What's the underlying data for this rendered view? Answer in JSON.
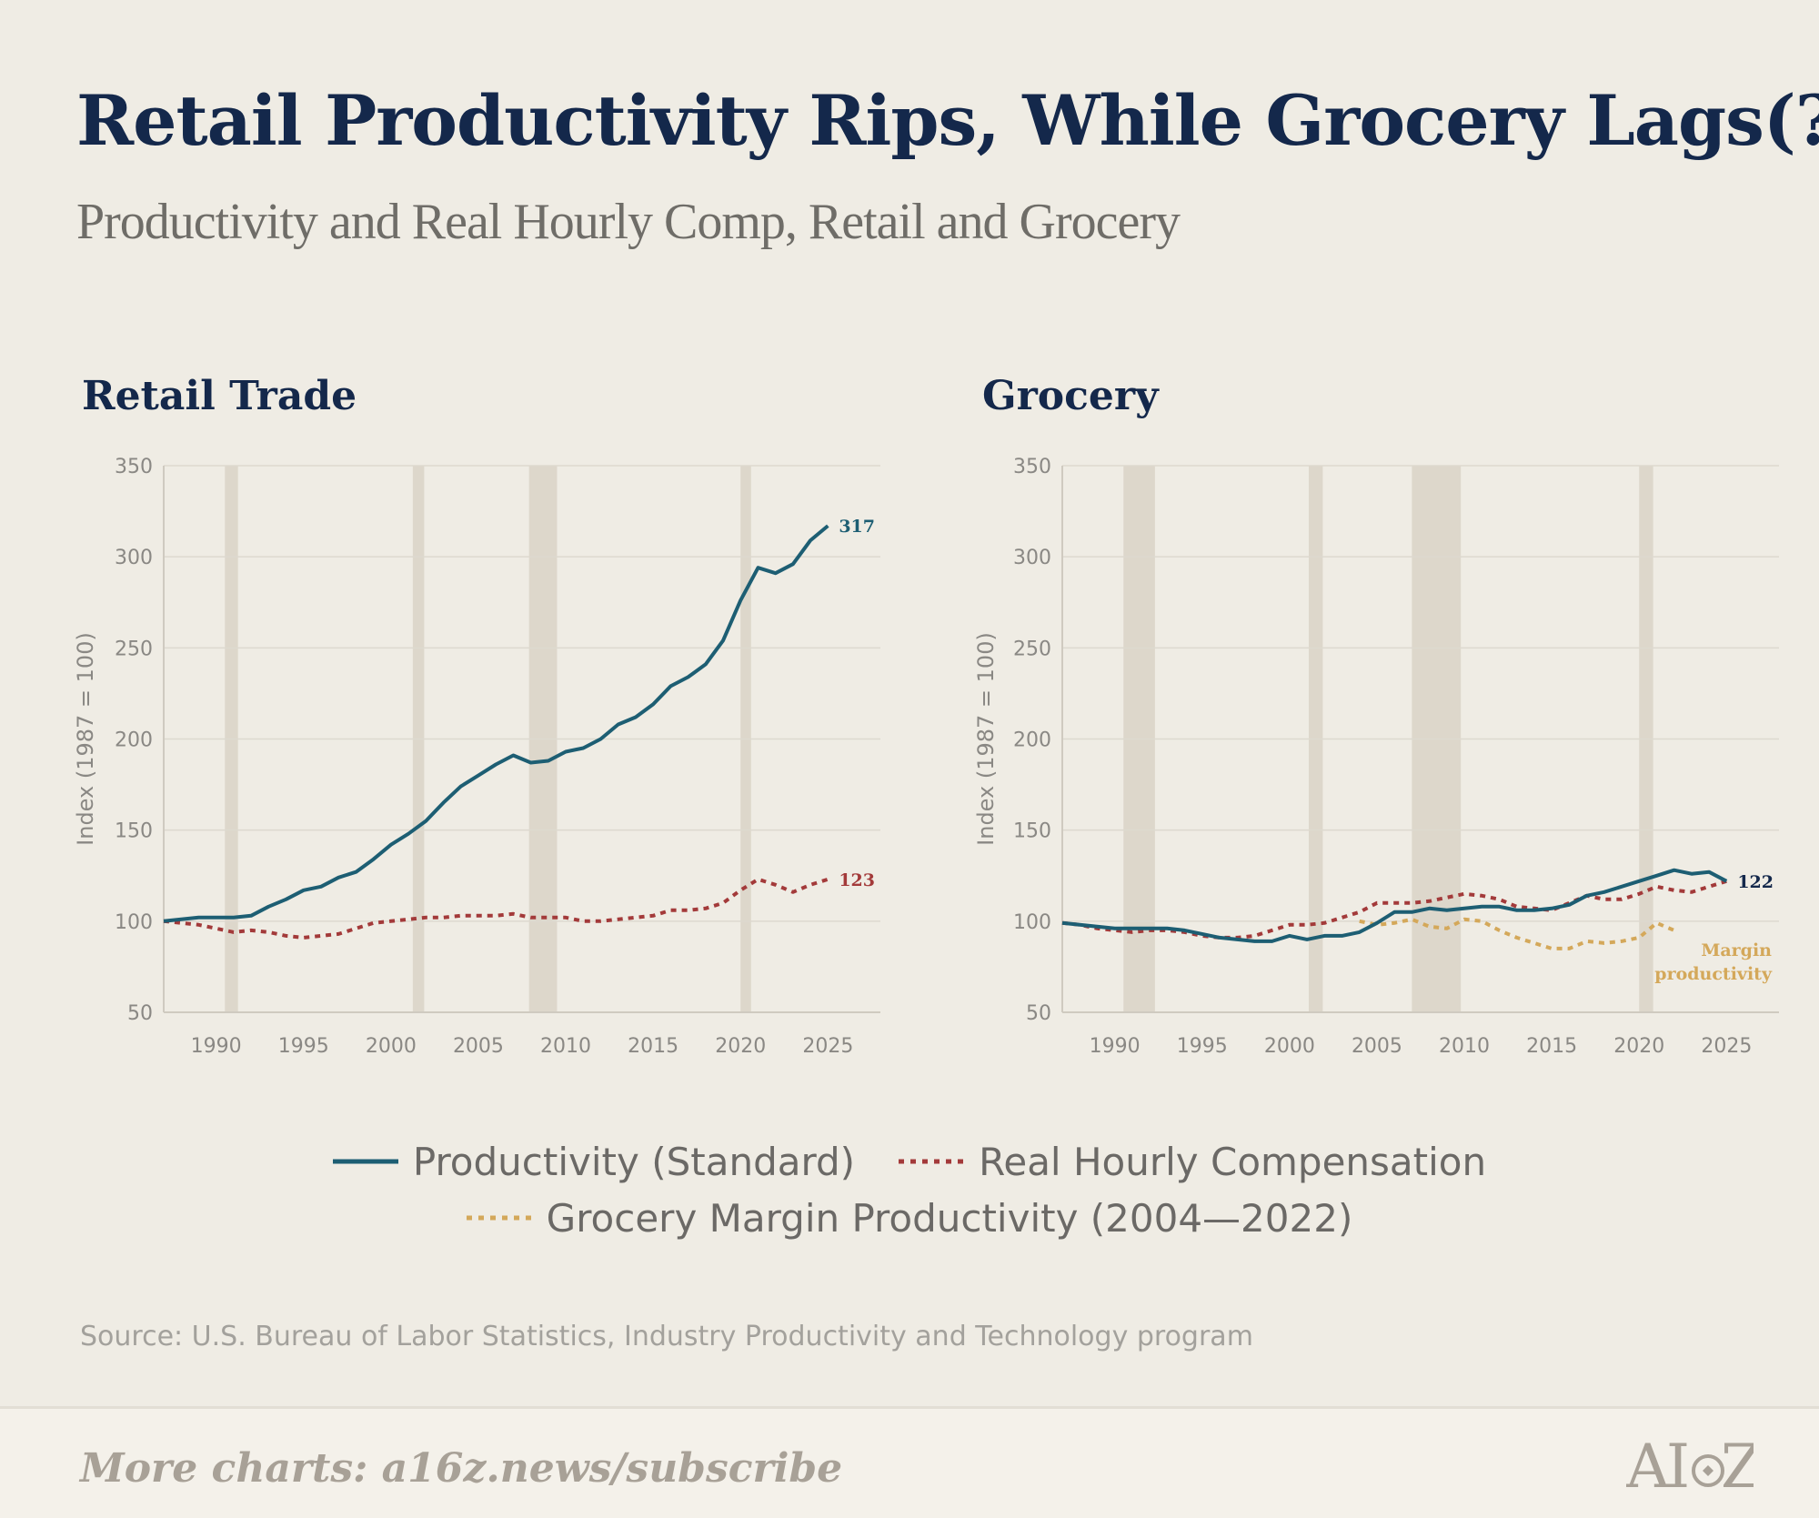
{
  "title": "Retail Productivity Rips, While Grocery Lags(?)",
  "subtitle": "Productivity and Real Hourly Comp, Retail and Grocery",
  "source": "Source: U.S. Bureau of Labor Statistics, Industry Productivity and Technology program",
  "footer": {
    "text": "More charts: a16z.news/subscribe",
    "logo": "A16Z"
  },
  "legend": {
    "productivity": "Productivity (Standard)",
    "compensation": "Real Hourly Compensation",
    "margin": "Grocery Margin Productivity (2004—2022)"
  },
  "colors": {
    "productivity": "#1d5e73",
    "compensation": "#a33a3a",
    "margin": "#d4a85a",
    "recession": "#ddd7cb"
  },
  "chart_data": [
    {
      "type": "line",
      "title": "Retail Trade",
      "ylabel": "Index (1987 = 100)",
      "ylim": [
        50,
        350
      ],
      "yticks": [
        50,
        100,
        150,
        200,
        250,
        300,
        350
      ],
      "xlim": [
        1987,
        2028
      ],
      "xticks": [
        1990,
        1995,
        2000,
        2005,
        2010,
        2015,
        2020,
        2025
      ],
      "grid": true,
      "recessions": [
        [
          1990.5,
          1991.25
        ],
        [
          2001.25,
          2001.9
        ],
        [
          2007.9,
          2009.5
        ],
        [
          2020.0,
          2020.6
        ]
      ],
      "series": [
        {
          "key": "productivity",
          "x": [
            1987,
            1988,
            1989,
            1990,
            1991,
            1992,
            1993,
            1994,
            1995,
            1996,
            1997,
            1998,
            1999,
            2000,
            2001,
            2002,
            2003,
            2004,
            2005,
            2006,
            2007,
            2008,
            2009,
            2010,
            2011,
            2012,
            2013,
            2014,
            2015,
            2016,
            2017,
            2018,
            2019,
            2020,
            2021,
            2022,
            2023,
            2024,
            2025
          ],
          "y": [
            100,
            101,
            102,
            102,
            102,
            103,
            108,
            112,
            117,
            119,
            124,
            127,
            134,
            142,
            148,
            155,
            165,
            174,
            180,
            186,
            191,
            187,
            188,
            193,
            195,
            200,
            208,
            212,
            219,
            229,
            234,
            241,
            254,
            276,
            294,
            291,
            296,
            309,
            317
          ],
          "end_label": "317"
        },
        {
          "key": "compensation",
          "x": [
            1987,
            1988,
            1989,
            1990,
            1991,
            1992,
            1993,
            1994,
            1995,
            1996,
            1997,
            1998,
            1999,
            2000,
            2001,
            2002,
            2003,
            2004,
            2005,
            2006,
            2007,
            2008,
            2009,
            2010,
            2011,
            2012,
            2013,
            2014,
            2015,
            2016,
            2017,
            2018,
            2019,
            2020,
            2021,
            2022,
            2023,
            2024,
            2025
          ],
          "y": [
            100,
            99,
            98,
            96,
            94,
            95,
            94,
            92,
            91,
            92,
            93,
            96,
            99,
            100,
            101,
            102,
            102,
            103,
            103,
            103,
            104,
            102,
            102,
            102,
            100,
            100,
            101,
            102,
            103,
            106,
            106,
            107,
            110,
            117,
            123,
            120,
            116,
            120,
            123
          ],
          "end_label": "123"
        }
      ]
    },
    {
      "type": "line",
      "title": "Grocery",
      "ylabel": "Index (1987 = 100)",
      "ylim": [
        50,
        350
      ],
      "yticks": [
        50,
        100,
        150,
        200,
        250,
        300,
        350
      ],
      "xlim": [
        1987,
        2028
      ],
      "xticks": [
        1990,
        1995,
        2000,
        2005,
        2010,
        2015,
        2020,
        2025
      ],
      "grid": true,
      "recessions": [
        [
          1990.5,
          1992.3
        ],
        [
          2001.1,
          2001.9
        ],
        [
          2007.0,
          2009.8
        ],
        [
          2020.0,
          2020.8
        ]
      ],
      "series": [
        {
          "key": "productivity",
          "x": [
            1987,
            1988,
            1989,
            1990,
            1991,
            1992,
            1993,
            1994,
            1995,
            1996,
            1997,
            1998,
            1999,
            2000,
            2001,
            2002,
            2003,
            2004,
            2005,
            2006,
            2007,
            2008,
            2009,
            2010,
            2011,
            2012,
            2013,
            2014,
            2015,
            2016,
            2017,
            2018,
            2019,
            2020,
            2021,
            2022,
            2023,
            2024,
            2025
          ],
          "y": [
            99,
            98,
            97,
            96,
            96,
            96,
            96,
            95,
            93,
            91,
            90,
            89,
            89,
            92,
            90,
            92,
            92,
            94,
            99,
            105,
            105,
            107,
            106,
            107,
            108,
            108,
            106,
            106,
            107,
            109,
            114,
            116,
            119,
            122,
            125,
            128,
            126,
            127,
            122
          ],
          "end_label": "122"
        },
        {
          "key": "compensation",
          "x": [
            1987,
            1988,
            1989,
            1990,
            1991,
            1992,
            1993,
            1994,
            1995,
            1996,
            1997,
            1998,
            1999,
            2000,
            2001,
            2002,
            2003,
            2004,
            2005,
            2006,
            2007,
            2008,
            2009,
            2010,
            2011,
            2012,
            2013,
            2014,
            2015,
            2016,
            2017,
            2018,
            2019,
            2020,
            2021,
            2022,
            2023,
            2024,
            2025
          ],
          "y": [
            99,
            98,
            96,
            95,
            94,
            95,
            95,
            94,
            92,
            91,
            91,
            92,
            95,
            98,
            98,
            99,
            102,
            105,
            110,
            110,
            110,
            111,
            113,
            115,
            114,
            112,
            108,
            107,
            106,
            110,
            114,
            112,
            112,
            115,
            119,
            117,
            116,
            119,
            122
          ]
        },
        {
          "key": "margin",
          "x": [
            2004,
            2005,
            2006,
            2007,
            2008,
            2009,
            2010,
            2011,
            2012,
            2013,
            2014,
            2015,
            2016,
            2017,
            2018,
            2019,
            2020,
            2021,
            2022
          ],
          "y": [
            100,
            98,
            99,
            101,
            97,
            96,
            101,
            100,
            95,
            91,
            88,
            85,
            85,
            89,
            88,
            89,
            91,
            99,
            95
          ],
          "end_label": "Margin productivity"
        }
      ]
    }
  ]
}
